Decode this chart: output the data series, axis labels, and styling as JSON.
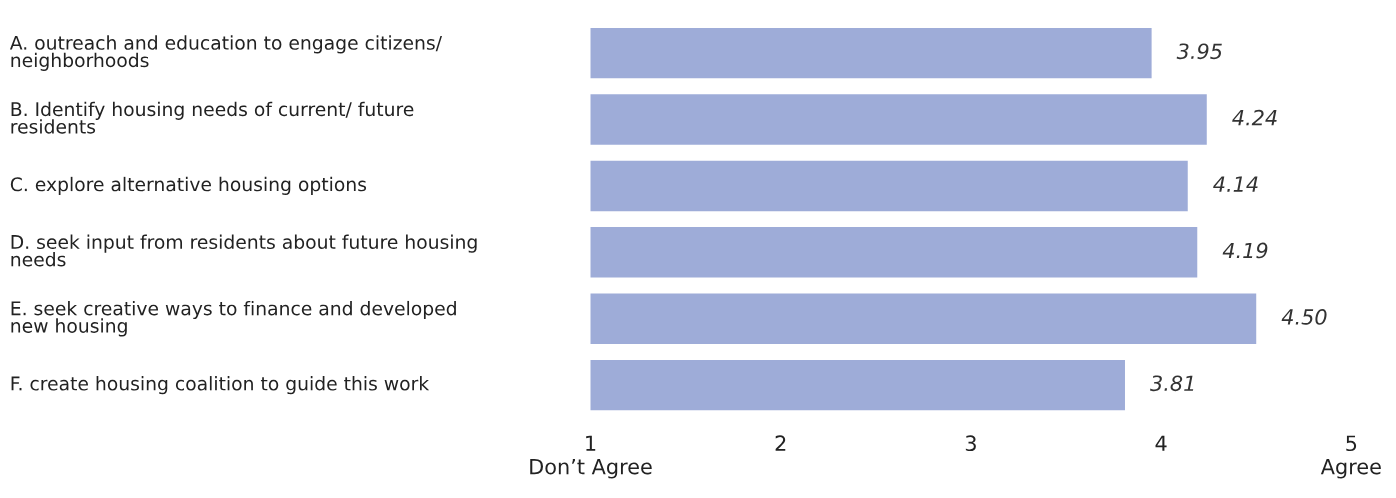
{
  "chart_data": {
    "type": "bar",
    "orientation": "horizontal",
    "categories": [
      "A. outreach and education to engage citizens/\nneighborhoods",
      "B. Identify housing needs of current/ future\nresidents",
      "C. explore alternative housing options",
      "D. seek input from residents about future housing\nneeds",
      "E. seek creative ways to finance and developed\nnew housing",
      "F. create housing coalition to guide this work"
    ],
    "values": [
      3.95,
      4.24,
      4.14,
      4.19,
      4.5,
      3.81
    ],
    "value_labels": [
      "3.95",
      "4.24",
      "4.14",
      "4.19",
      "4.50",
      "3.81"
    ],
    "color": "#9eacd8",
    "xlim": [
      1,
      5
    ],
    "xticks": [
      {
        "value": 1,
        "label": "1\nDon’t Agree"
      },
      2,
      3,
      4,
      {
        "value": 5,
        "label": "5\nAgree"
      }
    ],
    "grid": false
  }
}
